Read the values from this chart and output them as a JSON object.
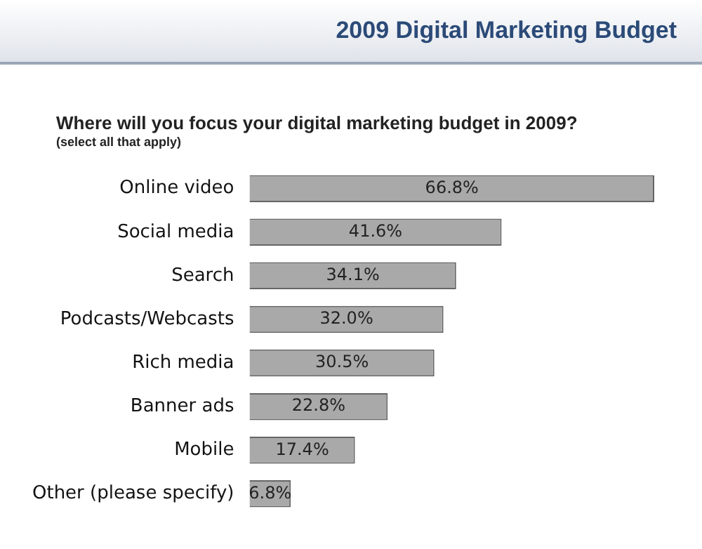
{
  "chart_data": {
    "type": "bar",
    "orientation": "horizontal",
    "title": "2009 Digital Marketing Budget",
    "subtitle": "Where will you focus your digital marketing budget in 2009?",
    "annotations": [
      "(select all that apply)"
    ],
    "categories": [
      "Online video",
      "Social media",
      "Search",
      "Podcasts/Webcasts",
      "Rich media",
      "Banner ads",
      "Mobile",
      "Other (please specify)"
    ],
    "values": [
      66.8,
      41.6,
      34.1,
      32.0,
      30.5,
      22.8,
      17.4,
      6.8
    ],
    "value_labels": [
      "66.8%",
      "41.6%",
      "34.1%",
      "32.0%",
      "30.5%",
      "22.8%",
      "17.4%",
      "6.8%"
    ],
    "color": "#a9a9a9",
    "legend": false
  }
}
